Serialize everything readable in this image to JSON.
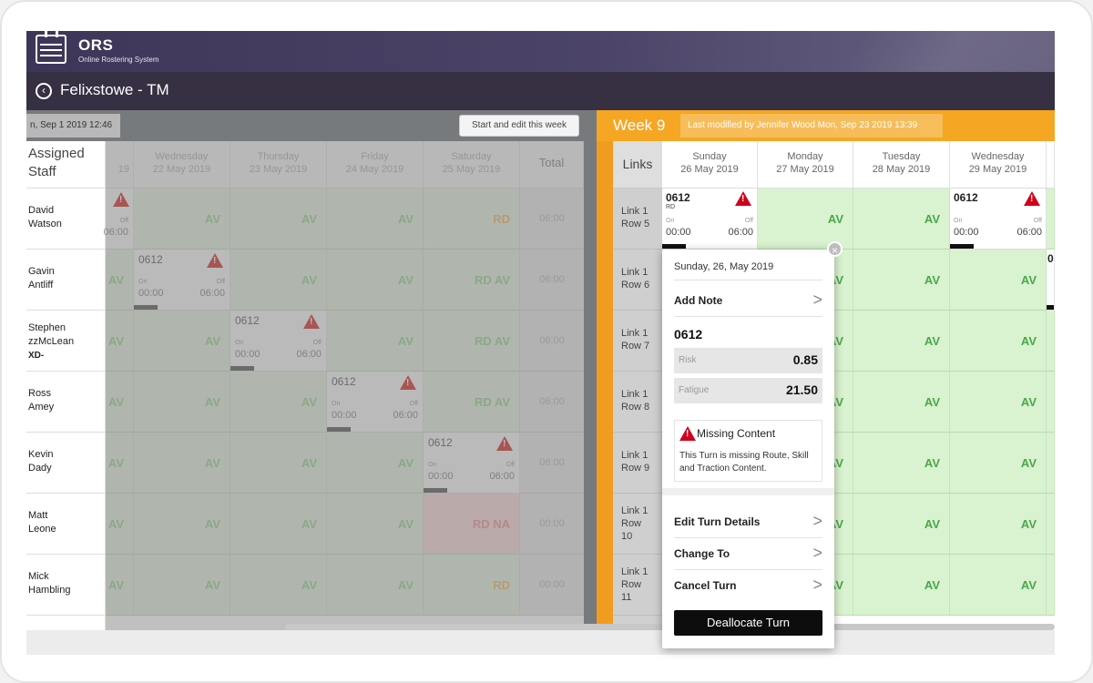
{
  "app": {
    "name": "ORS",
    "subtitle": "Online Rostering System"
  },
  "location": {
    "title": "Felixstowe - TM",
    "back_icon": "back-circle-icon"
  },
  "left_panel": {
    "date_label": "n, Sep 1 2019 12:46",
    "start_button": "Start and edit this week",
    "staff_header": "Assigned Staff",
    "partial_day": "19",
    "days": [
      {
        "day": "Wednesday",
        "date": "22 May 2019"
      },
      {
        "day": "Thursday",
        "date": "23 May 2019"
      },
      {
        "day": "Friday",
        "date": "24 May 2019"
      },
      {
        "day": "Saturday",
        "date": "25 May 2019"
      }
    ],
    "total_header": "Total",
    "staff": [
      {
        "name1": "David",
        "name2": "Watson",
        "tag": "",
        "total": "06:00"
      },
      {
        "name1": "Gavin",
        "name2": "Antliff",
        "tag": "",
        "total": "06:00"
      },
      {
        "name1": "Stephen",
        "name2": "zzMcLean",
        "tag": "XD-",
        "total": "06:00"
      },
      {
        "name1": "Ross",
        "name2": "Amey",
        "tag": "",
        "total": "06:00"
      },
      {
        "name1": "Kevin",
        "name2": "Dady",
        "tag": "",
        "total": "06:00"
      },
      {
        "name1": "Matt",
        "name2": "Leone",
        "tag": "",
        "total": "00:00"
      },
      {
        "name1": "Mick",
        "name2": "Hambling",
        "tag": "",
        "total": "00:00"
      }
    ],
    "av": "AV",
    "rd": "RD",
    "rd_av": "RD AV",
    "rd_na": "RD NA",
    "turn": {
      "code": "0612",
      "on": "On",
      "off": "Off",
      "start": "00:00",
      "end": "06:00"
    },
    "partial_turn": {
      "off": "Off",
      "end": "06:00"
    }
  },
  "right_panel": {
    "week_label": "Week 9",
    "modified": "Last modified by Jennifer Wood Mon, Sep 23 2019 13:39",
    "links_header": "Links",
    "days": [
      {
        "day": "Sunday",
        "date": "26 May 2019"
      },
      {
        "day": "Monday",
        "date": "27 May 2019"
      },
      {
        "day": "Tuesday",
        "date": "28 May 2019"
      },
      {
        "day": "Wednesday",
        "date": "29 May 2019"
      }
    ],
    "links": [
      {
        "l1": "Link 1",
        "l2": "Row 5",
        "l3": ""
      },
      {
        "l1": "Link 1",
        "l2": "Row 6",
        "l3": ""
      },
      {
        "l1": "Link 1",
        "l2": "Row 7",
        "l3": ""
      },
      {
        "l1": "Link 1",
        "l2": "Row 8",
        "l3": ""
      },
      {
        "l1": "Link 1",
        "l2": "Row 9",
        "l3": ""
      },
      {
        "l1": "Link 1",
        "l2": "Row",
        "l3": "10"
      },
      {
        "l1": "Link 1",
        "l2": "Row",
        "l3": "11"
      }
    ],
    "av": "AV",
    "turn": {
      "code": "0612",
      "rd": "RD",
      "on": "On",
      "off": "Off",
      "start": "00:00",
      "end": "06:00"
    },
    "partial_code": "0"
  },
  "popover": {
    "date": "Sunday, 26, May 2019",
    "add_note": "Add Note",
    "turn_code": "0612",
    "risk_label": "Risk",
    "risk_value": "0.85",
    "fatigue_label": "Fatigue",
    "fatigue_value": "21.50",
    "missing_title": "Missing Content",
    "missing_text": "This Turn is missing Route, Skill and Traction Content.",
    "edit": "Edit Turn Details",
    "change": "Change To",
    "cancel": "Cancel Turn",
    "deallocate": "Deallocate Turn",
    "chevron": ">",
    "close": "×"
  },
  "colors": {
    "accent": "#f5a623",
    "header": "#3e3658",
    "warning": "#d0021b",
    "available": "#4aa84a"
  }
}
